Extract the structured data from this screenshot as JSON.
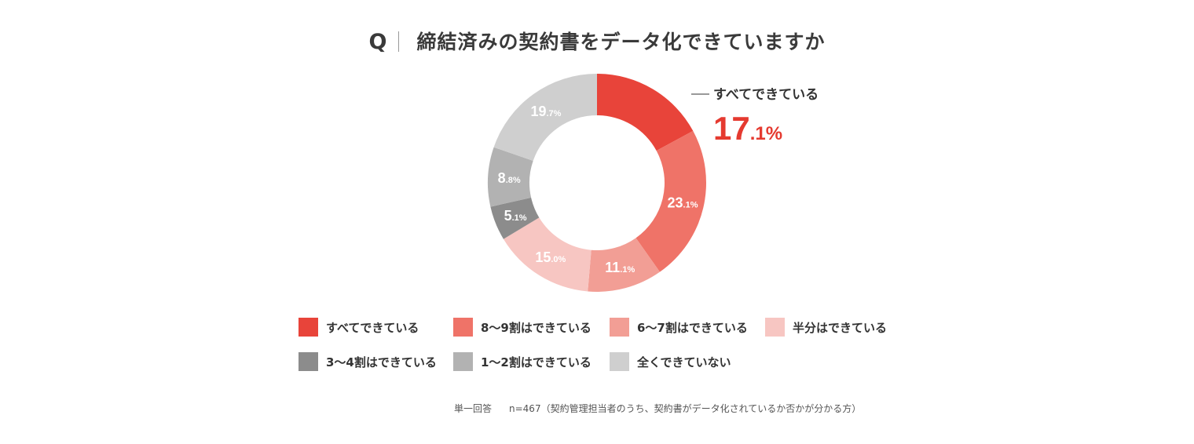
{
  "title": {
    "q": "Q",
    "text": "締結済みの契約書をデータ化できていますか"
  },
  "callout": {
    "label": "すべてできている",
    "value_int": "17",
    "value_dec": ".1%"
  },
  "chart_data": {
    "type": "pie",
    "donut": true,
    "categories": [
      "すべてできている",
      "8〜9割はできている",
      "6〜7割はできている",
      "半分はできている",
      "3〜4割はできている",
      "1〜2割はできている",
      "全くできていない"
    ],
    "values": [
      17.1,
      23.1,
      11.1,
      15.0,
      5.1,
      8.8,
      19.7
    ],
    "colors": [
      "#e8443a",
      "#ef7368",
      "#f29e95",
      "#f7c6c2",
      "#8c8c8c",
      "#b2b2b2",
      "#cfcfcf"
    ],
    "labels": [
      {
        "int": "17",
        "dec": ".1%"
      },
      {
        "int": "23",
        "dec": ".1%"
      },
      {
        "int": "11",
        "dec": ".1%"
      },
      {
        "int": "15",
        "dec": ".0%"
      },
      {
        "int": "5",
        "dec": ".1%"
      },
      {
        "int": "8",
        "dec": ".8%"
      },
      {
        "int": "19",
        "dec": ".7%"
      }
    ],
    "start": "top",
    "direction": "clockwise",
    "legend": "bottom"
  },
  "legend": {
    "row1": [
      "すべてできている",
      "8〜9割はできている",
      "6〜7割はできている",
      "半分はできている"
    ],
    "row2": [
      "3〜4割はできている",
      "1〜2割はできている",
      "全くできていない"
    ]
  },
  "footnote": {
    "type": "単一回答",
    "n": "n=467（契約管理担当者のうち、契約書がデータ化されているか否かが分かる方）"
  }
}
